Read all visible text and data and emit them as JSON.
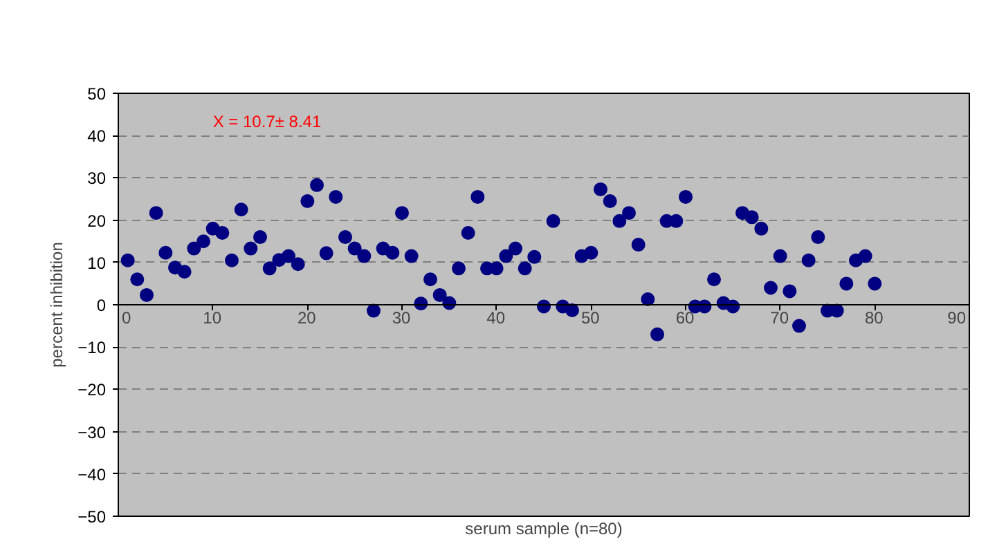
{
  "chart_data": {
    "type": "scatter",
    "xlabel": "serum sample (n=80)",
    "ylabel": "percent inhibition",
    "annotations": [
      "X = 10.7± 8.41"
    ],
    "x": [
      1,
      2,
      3,
      4,
      5,
      6,
      7,
      8,
      9,
      10,
      11,
      12,
      13,
      14,
      15,
      16,
      17,
      18,
      19,
      20,
      21,
      22,
      23,
      24,
      25,
      26,
      27,
      28,
      29,
      30,
      31,
      32,
      33,
      34,
      35,
      36,
      37,
      38,
      39,
      40,
      41,
      42,
      43,
      44,
      45,
      46,
      47,
      48,
      49,
      50,
      51,
      52,
      53,
      54,
      55,
      56,
      57,
      58,
      59,
      60,
      61,
      62,
      63,
      64,
      65,
      66,
      67,
      68,
      69,
      70,
      71,
      72,
      73,
      74,
      75,
      76,
      77,
      78,
      79,
      80
    ],
    "series": [
      {
        "color": "#000080",
        "values": [
          10.5,
          6,
          2.3,
          21.7,
          12.3,
          8.8,
          7.8,
          13.3,
          15,
          18,
          17,
          10.5,
          22.5,
          13.3,
          16,
          8.6,
          10.6,
          11.5,
          9.6,
          24.5,
          28.3,
          12.2,
          25.5,
          16,
          13.3,
          11.5,
          -1.4,
          13.3,
          12.3,
          21.7,
          11.5,
          0.3,
          6,
          2.3,
          0.4,
          8.6,
          17,
          25.5,
          8.6,
          8.6,
          11.5,
          13.3,
          8.6,
          11.3,
          -0.4,
          19.8,
          -0.4,
          -1.3,
          11.5,
          12.3,
          27.3,
          24.5,
          19.8,
          21.7,
          14.2,
          1.3,
          -7,
          19.8,
          19.8,
          25.5,
          -0.4,
          -0.4,
          6,
          0.4,
          -0.4,
          21.7,
          20.7,
          18,
          4,
          11.5,
          3.2,
          -5,
          10.5,
          16,
          -1.4,
          -1.4,
          5,
          10.5,
          11.5,
          5
        ]
      }
    ],
    "xlim": [
      0,
      90
    ],
    "xticks": [
      0,
      10,
      20,
      30,
      40,
      50,
      60,
      70,
      80,
      90
    ],
    "ylim": [
      -50,
      50
    ],
    "yticks": [
      -50,
      -40,
      -30,
      -20,
      -10,
      0,
      10,
      20,
      30,
      40,
      50
    ],
    "grid": "y",
    "marker": "circle"
  }
}
